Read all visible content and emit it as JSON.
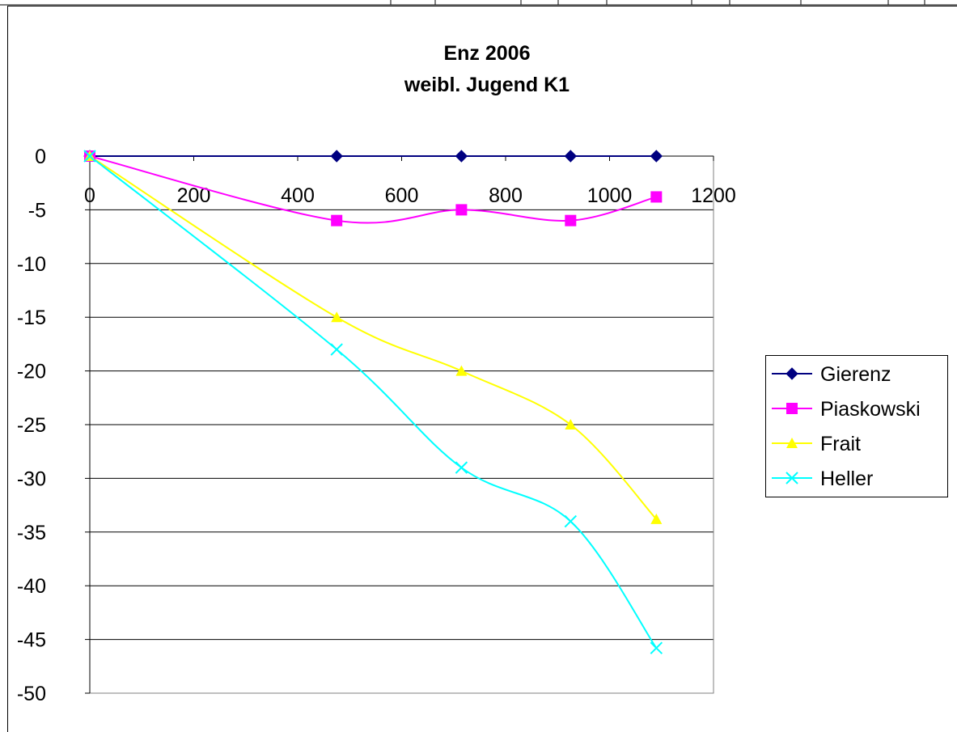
{
  "chart_data": {
    "type": "line",
    "title": "Enz 2006",
    "subtitle": "weibl. Jugend K1",
    "xlabel": "",
    "ylabel": "",
    "xlim": [
      0,
      1200
    ],
    "ylim": [
      -50,
      0
    ],
    "x_ticks": [
      "0",
      "200",
      "400",
      "600",
      "800",
      "1000",
      "1200"
    ],
    "y_ticks": [
      "0",
      "-5",
      "-10",
      "-15",
      "-20",
      "-25",
      "-30",
      "-35",
      "-40",
      "-45",
      "-50"
    ],
    "grid": "horizontal",
    "legend": "right",
    "smooth": true,
    "series": [
      {
        "name": "Gierenz",
        "color": "#000080",
        "marker": "diamond",
        "x": [
          0,
          475,
          715,
          925,
          1090
        ],
        "y": [
          0,
          0,
          0,
          0,
          0
        ]
      },
      {
        "name": "Piaskowski",
        "color": "#FF00FF",
        "marker": "square",
        "x": [
          0,
          475,
          715,
          925,
          1090
        ],
        "y": [
          0,
          -6,
          -5,
          -6,
          -3.8
        ]
      },
      {
        "name": "Frait",
        "color": "#FFFF00",
        "marker": "triangle",
        "x": [
          0,
          475,
          715,
          925,
          1090
        ],
        "y": [
          0,
          -15,
          -20,
          -25,
          -33.8
        ]
      },
      {
        "name": "Heller",
        "color": "#00FFFF",
        "marker": "x",
        "x": [
          0,
          475,
          715,
          925,
          1090
        ],
        "y": [
          0,
          -18,
          -29,
          -34,
          -45.8
        ]
      }
    ]
  }
}
